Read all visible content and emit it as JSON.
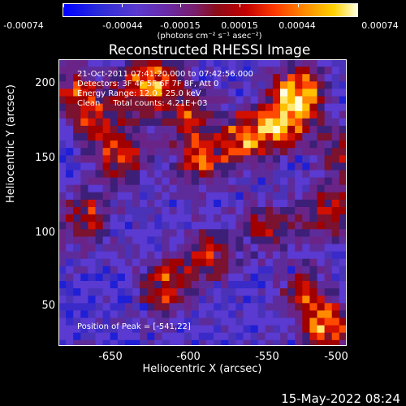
{
  "colorbar": {
    "labels": [
      "-0.00074",
      "-0.00044",
      "-0.00015",
      "0.00015",
      "0.00044",
      "0.00074"
    ],
    "units": "(photons cm⁻² s⁻¹ asec⁻²)"
  },
  "title": "Reconstructed RHESSI Image",
  "info": {
    "line1": "21-Oct-2011 07:41:20.000 to 07:42:56.000",
    "line2": "Detectors: 3F 4F 5F 6F 7F 8F, Att 0",
    "line3": "Energy Range: 12.0 - 25.0 keV",
    "line4": "Clean     Total counts: 4.21E+03",
    "peak": "Position of Peak = [-541,22]"
  },
  "axes": {
    "y_ticks": [
      "200",
      "150",
      "100",
      "50"
    ],
    "x_ticks": [
      "-650",
      "-600",
      "-550",
      "-500"
    ],
    "xlabel": "Heliocentric X (arcsec)",
    "ylabel": "Heliocentric Y (arcsec)"
  },
  "timestamp": "15-May-2022 08:24",
  "colors": {
    "background": "#000000",
    "low": "#0000ff",
    "mid": "#5a3ad0",
    "high_red": "#c40000",
    "high_orange": "#ff8a00",
    "max": "#ffffe0"
  }
}
